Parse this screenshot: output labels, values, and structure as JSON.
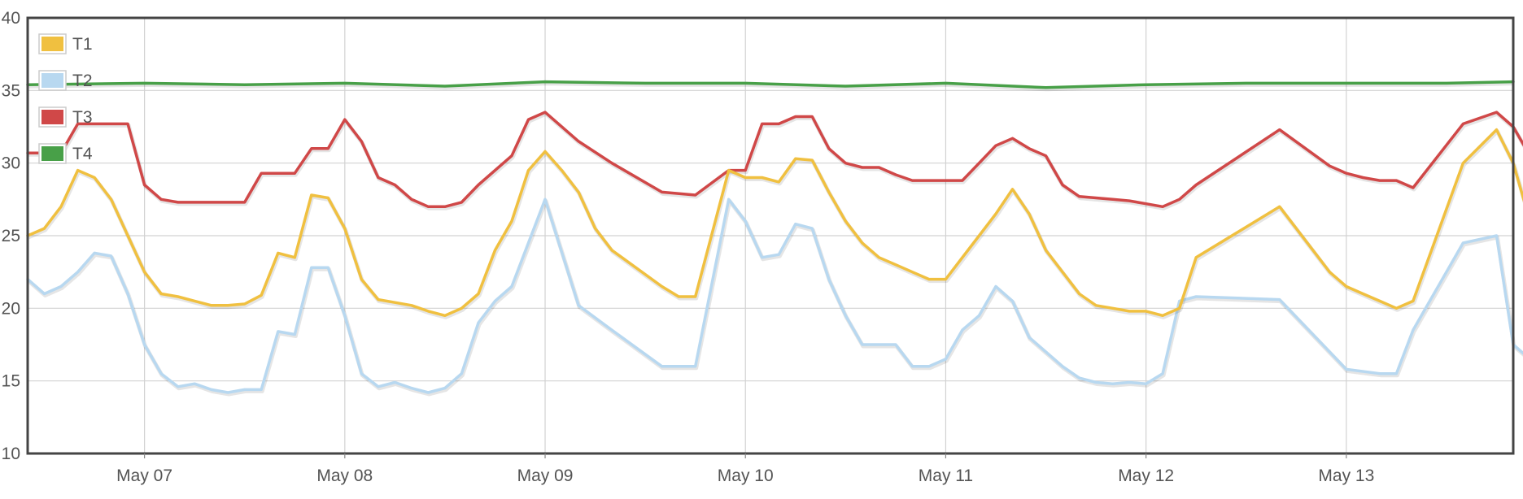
{
  "chart_data": {
    "type": "line",
    "x_axis": {
      "ticks": [
        "May 07",
        "May 08",
        "May 09",
        "May 10",
        "May 11",
        "May 12",
        "May 13"
      ],
      "range": [
        "2024-05-06T10:00",
        "2024-05-13T20:00"
      ]
    },
    "y_axis": {
      "min": 10,
      "max": 40,
      "ticks": [
        "10",
        "15",
        "20",
        "25",
        "30",
        "35",
        "40"
      ]
    },
    "grid": true,
    "legend": "top-left",
    "series": [
      {
        "name": "T1",
        "color": "#f0c040",
        "points": [
          [
            "2024-05-06T10:00",
            25
          ],
          [
            "2024-05-06T12:00",
            25.5
          ],
          [
            "2024-05-06T14:00",
            27
          ],
          [
            "2024-05-06T16:00",
            29.5
          ],
          [
            "2024-05-06T18:00",
            29
          ],
          [
            "2024-05-06T20:00",
            27.5
          ],
          [
            "2024-05-06T22:00",
            25
          ],
          [
            "2024-05-07T00:00",
            22.5
          ],
          [
            "2024-05-07T02:00",
            21
          ],
          [
            "2024-05-07T04:00",
            20.8
          ],
          [
            "2024-05-07T06:00",
            20.5
          ],
          [
            "2024-05-07T08:00",
            20.2
          ],
          [
            "2024-05-07T10:00",
            20.2
          ],
          [
            "2024-05-07T12:00",
            20.3
          ],
          [
            "2024-05-07T14:00",
            20.9
          ],
          [
            "2024-05-07T16:00",
            23.8
          ],
          [
            "2024-05-07T18:00",
            23.5
          ],
          [
            "2024-05-07T20:00",
            27.8
          ],
          [
            "2024-05-07T22:00",
            27.6
          ],
          [
            "2024-05-08T00:00",
            25.5
          ],
          [
            "2024-05-08T02:00",
            22
          ],
          [
            "2024-05-08T04:00",
            20.6
          ],
          [
            "2024-05-08T06:00",
            20.4
          ],
          [
            "2024-05-08T08:00",
            20.2
          ],
          [
            "2024-05-08T10:00",
            19.8
          ],
          [
            "2024-05-08T12:00",
            19.5
          ],
          [
            "2024-05-08T14:00",
            20
          ],
          [
            "2024-05-08T16:00",
            21
          ],
          [
            "2024-05-08T18:00",
            24
          ],
          [
            "2024-05-08T20:00",
            26
          ],
          [
            "2024-05-08T22:00",
            29.5
          ],
          [
            "2024-05-09T00:00",
            30.8
          ],
          [
            "2024-05-09T02:00",
            29.5
          ],
          [
            "2024-05-09T04:00",
            28
          ],
          [
            "2024-05-09T06:00",
            25.5
          ],
          [
            "2024-05-09T08:00",
            24
          ],
          [
            "2024-05-09T14:00",
            21.5
          ],
          [
            "2024-05-09T16:00",
            20.8
          ],
          [
            "2024-05-09T18:00",
            20.8
          ],
          [
            "2024-05-09T22:00",
            29.5
          ],
          [
            "2024-05-10T00:00",
            29
          ],
          [
            "2024-05-10T02:00",
            29
          ],
          [
            "2024-05-10T04:00",
            28.7
          ],
          [
            "2024-05-10T06:00",
            30.3
          ],
          [
            "2024-05-10T08:00",
            30.2
          ],
          [
            "2024-05-10T10:00",
            28
          ],
          [
            "2024-05-10T12:00",
            26
          ],
          [
            "2024-05-10T14:00",
            24.5
          ],
          [
            "2024-05-10T16:00",
            23.5
          ],
          [
            "2024-05-10T18:00",
            23
          ],
          [
            "2024-05-10T20:00",
            22.5
          ],
          [
            "2024-05-10T22:00",
            22
          ],
          [
            "2024-05-11T00:00",
            22
          ],
          [
            "2024-05-11T02:00",
            23.5
          ],
          [
            "2024-05-11T04:00",
            25
          ],
          [
            "2024-05-11T06:00",
            26.5
          ],
          [
            "2024-05-11T08:00",
            28.2
          ],
          [
            "2024-05-11T10:00",
            26.5
          ],
          [
            "2024-05-11T12:00",
            24
          ],
          [
            "2024-05-11T14:00",
            22.5
          ],
          [
            "2024-05-11T16:00",
            21
          ],
          [
            "2024-05-11T18:00",
            20.2
          ],
          [
            "2024-05-11T20:00",
            20
          ],
          [
            "2024-05-11T22:00",
            19.8
          ],
          [
            "2024-05-12T00:00",
            19.8
          ],
          [
            "2024-05-12T02:00",
            19.5
          ],
          [
            "2024-05-12T04:00",
            20
          ],
          [
            "2024-05-12T06:00",
            23.5
          ],
          [
            "2024-05-12T16:00",
            27
          ],
          [
            "2024-05-12T22:00",
            22.5
          ],
          [
            "2024-05-13T00:00",
            21.5
          ],
          [
            "2024-05-13T02:00",
            21
          ],
          [
            "2024-05-13T04:00",
            20.5
          ],
          [
            "2024-05-13T06:00",
            20
          ],
          [
            "2024-05-13T08:00",
            20.5
          ],
          [
            "2024-05-13T14:00",
            30
          ],
          [
            "2024-05-13T18:00",
            32.3
          ],
          [
            "2024-05-13T20:00",
            30
          ],
          [
            "2024-05-13T22:00",
            26
          ]
        ]
      },
      {
        "name": "T2",
        "color": "#b8d8f0",
        "points": [
          [
            "2024-05-06T10:00",
            22
          ],
          [
            "2024-05-06T12:00",
            21
          ],
          [
            "2024-05-06T14:00",
            21.5
          ],
          [
            "2024-05-06T16:00",
            22.5
          ],
          [
            "2024-05-06T18:00",
            23.8
          ],
          [
            "2024-05-06T20:00",
            23.6
          ],
          [
            "2024-05-06T22:00",
            21
          ],
          [
            "2024-05-07T00:00",
            17.5
          ],
          [
            "2024-05-07T02:00",
            15.5
          ],
          [
            "2024-05-07T04:00",
            14.6
          ],
          [
            "2024-05-07T06:00",
            14.8
          ],
          [
            "2024-05-07T08:00",
            14.4
          ],
          [
            "2024-05-07T10:00",
            14.2
          ],
          [
            "2024-05-07T12:00",
            14.4
          ],
          [
            "2024-05-07T14:00",
            14.4
          ],
          [
            "2024-05-07T16:00",
            18.4
          ],
          [
            "2024-05-07T18:00",
            18.2
          ],
          [
            "2024-05-07T20:00",
            22.8
          ],
          [
            "2024-05-07T22:00",
            22.8
          ],
          [
            "2024-05-08T00:00",
            19.5
          ],
          [
            "2024-05-08T02:00",
            15.5
          ],
          [
            "2024-05-08T04:00",
            14.6
          ],
          [
            "2024-05-08T06:00",
            14.9
          ],
          [
            "2024-05-08T08:00",
            14.5
          ],
          [
            "2024-05-08T10:00",
            14.2
          ],
          [
            "2024-05-08T12:00",
            14.5
          ],
          [
            "2024-05-08T14:00",
            15.5
          ],
          [
            "2024-05-08T16:00",
            19
          ],
          [
            "2024-05-08T18:00",
            20.5
          ],
          [
            "2024-05-08T20:00",
            21.5
          ],
          [
            "2024-05-08T22:00",
            24.5
          ],
          [
            "2024-05-09T00:00",
            27.5
          ],
          [
            "2024-05-09T04:00",
            20.2
          ],
          [
            "2024-05-09T08:00",
            18.5
          ],
          [
            "2024-05-09T14:00",
            16
          ],
          [
            "2024-05-09T18:00",
            16
          ],
          [
            "2024-05-09T22:00",
            27.5
          ],
          [
            "2024-05-10T00:00",
            26
          ],
          [
            "2024-05-10T02:00",
            23.5
          ],
          [
            "2024-05-10T04:00",
            23.7
          ],
          [
            "2024-05-10T06:00",
            25.8
          ],
          [
            "2024-05-10T08:00",
            25.5
          ],
          [
            "2024-05-10T10:00",
            22
          ],
          [
            "2024-05-10T12:00",
            19.5
          ],
          [
            "2024-05-10T14:00",
            17.5
          ],
          [
            "2024-05-10T16:00",
            17.5
          ],
          [
            "2024-05-10T18:00",
            17.5
          ],
          [
            "2024-05-10T20:00",
            16
          ],
          [
            "2024-05-10T22:00",
            16
          ],
          [
            "2024-05-11T00:00",
            16.5
          ],
          [
            "2024-05-11T02:00",
            18.5
          ],
          [
            "2024-05-11T04:00",
            19.5
          ],
          [
            "2024-05-11T06:00",
            21.5
          ],
          [
            "2024-05-11T08:00",
            20.5
          ],
          [
            "2024-05-11T10:00",
            18
          ],
          [
            "2024-05-11T12:00",
            17
          ],
          [
            "2024-05-11T14:00",
            16
          ],
          [
            "2024-05-11T16:00",
            15.2
          ],
          [
            "2024-05-11T18:00",
            14.9
          ],
          [
            "2024-05-11T20:00",
            14.8
          ],
          [
            "2024-05-11T22:00",
            14.9
          ],
          [
            "2024-05-12T00:00",
            14.8
          ],
          [
            "2024-05-12T02:00",
            15.5
          ],
          [
            "2024-05-12T04:00",
            20.5
          ],
          [
            "2024-05-12T06:00",
            20.8
          ],
          [
            "2024-05-12T16:00",
            20.6
          ],
          [
            "2024-05-12T22:00",
            17
          ],
          [
            "2024-05-13T00:00",
            15.8
          ],
          [
            "2024-05-13T04:00",
            15.5
          ],
          [
            "2024-05-13T06:00",
            15.5
          ],
          [
            "2024-05-13T08:00",
            18.5
          ],
          [
            "2024-05-13T14:00",
            24.5
          ],
          [
            "2024-05-13T18:00",
            25
          ],
          [
            "2024-05-13T20:00",
            17.5
          ],
          [
            "2024-05-13T22:00",
            16.5
          ]
        ]
      },
      {
        "name": "T3",
        "color": "#d04848",
        "points": [
          [
            "2024-05-06T10:00",
            30.7
          ],
          [
            "2024-05-06T14:00",
            30.7
          ],
          [
            "2024-05-06T16:00",
            32.7
          ],
          [
            "2024-05-06T20:00",
            32.7
          ],
          [
            "2024-05-06T22:00",
            32.7
          ],
          [
            "2024-05-07T00:00",
            28.5
          ],
          [
            "2024-05-07T02:00",
            27.5
          ],
          [
            "2024-05-07T04:00",
            27.3
          ],
          [
            "2024-05-07T12:00",
            27.3
          ],
          [
            "2024-05-07T14:00",
            29.3
          ],
          [
            "2024-05-07T18:00",
            29.3
          ],
          [
            "2024-05-07T20:00",
            31
          ],
          [
            "2024-05-07T22:00",
            31
          ],
          [
            "2024-05-08T00:00",
            33
          ],
          [
            "2024-05-08T02:00",
            31.5
          ],
          [
            "2024-05-08T04:00",
            29
          ],
          [
            "2024-05-08T06:00",
            28.5
          ],
          [
            "2024-05-08T08:00",
            27.5
          ],
          [
            "2024-05-08T10:00",
            27
          ],
          [
            "2024-05-08T12:00",
            27
          ],
          [
            "2024-05-08T14:00",
            27.3
          ],
          [
            "2024-05-08T16:00",
            28.5
          ],
          [
            "2024-05-08T20:00",
            30.5
          ],
          [
            "2024-05-08T22:00",
            33
          ],
          [
            "2024-05-09T00:00",
            33.5
          ],
          [
            "2024-05-09T04:00",
            31.5
          ],
          [
            "2024-05-09T08:00",
            30
          ],
          [
            "2024-05-09T14:00",
            28
          ],
          [
            "2024-05-09T18:00",
            27.8
          ],
          [
            "2024-05-09T22:00",
            29.5
          ],
          [
            "2024-05-10T00:00",
            29.5
          ],
          [
            "2024-05-10T02:00",
            32.7
          ],
          [
            "2024-05-10T04:00",
            32.7
          ],
          [
            "2024-05-10T06:00",
            33.2
          ],
          [
            "2024-05-10T08:00",
            33.2
          ],
          [
            "2024-05-10T10:00",
            31
          ],
          [
            "2024-05-10T12:00",
            30
          ],
          [
            "2024-05-10T14:00",
            29.7
          ],
          [
            "2024-05-10T16:00",
            29.7
          ],
          [
            "2024-05-10T18:00",
            29.2
          ],
          [
            "2024-05-10T20:00",
            28.8
          ],
          [
            "2024-05-10T22:00",
            28.8
          ],
          [
            "2024-05-11T00:00",
            28.8
          ],
          [
            "2024-05-11T02:00",
            28.8
          ],
          [
            "2024-05-11T04:00",
            30
          ],
          [
            "2024-05-11T06:00",
            31.2
          ],
          [
            "2024-05-11T08:00",
            31.7
          ],
          [
            "2024-05-11T10:00",
            31
          ],
          [
            "2024-05-11T12:00",
            30.5
          ],
          [
            "2024-05-11T14:00",
            28.5
          ],
          [
            "2024-05-11T16:00",
            27.7
          ],
          [
            "2024-05-11T18:00",
            27.6
          ],
          [
            "2024-05-11T20:00",
            27.5
          ],
          [
            "2024-05-11T22:00",
            27.4
          ],
          [
            "2024-05-12T00:00",
            27.2
          ],
          [
            "2024-05-12T02:00",
            27
          ],
          [
            "2024-05-12T04:00",
            27.5
          ],
          [
            "2024-05-12T06:00",
            28.5
          ],
          [
            "2024-05-12T16:00",
            32.3
          ],
          [
            "2024-05-12T22:00",
            29.8
          ],
          [
            "2024-05-13T00:00",
            29.3
          ],
          [
            "2024-05-13T02:00",
            29
          ],
          [
            "2024-05-13T04:00",
            28.8
          ],
          [
            "2024-05-13T06:00",
            28.8
          ],
          [
            "2024-05-13T08:00",
            28.3
          ],
          [
            "2024-05-13T14:00",
            32.7
          ],
          [
            "2024-05-13T18:00",
            33.5
          ],
          [
            "2024-05-13T20:00",
            32.5
          ],
          [
            "2024-05-13T22:00",
            30.5
          ]
        ]
      },
      {
        "name": "T4",
        "color": "#48a048",
        "points": [
          [
            "2024-05-06T10:00",
            35.4
          ],
          [
            "2024-05-07T00:00",
            35.5
          ],
          [
            "2024-05-07T12:00",
            35.4
          ],
          [
            "2024-05-08T00:00",
            35.5
          ],
          [
            "2024-05-08T12:00",
            35.3
          ],
          [
            "2024-05-09T00:00",
            35.6
          ],
          [
            "2024-05-09T12:00",
            35.5
          ],
          [
            "2024-05-10T00:00",
            35.5
          ],
          [
            "2024-05-10T12:00",
            35.3
          ],
          [
            "2024-05-11T00:00",
            35.5
          ],
          [
            "2024-05-11T12:00",
            35.2
          ],
          [
            "2024-05-12T00:00",
            35.4
          ],
          [
            "2024-05-12T12:00",
            35.5
          ],
          [
            "2024-05-13T00:00",
            35.5
          ],
          [
            "2024-05-13T12:00",
            35.5
          ],
          [
            "2024-05-13T20:00",
            35.6
          ]
        ]
      }
    ]
  }
}
